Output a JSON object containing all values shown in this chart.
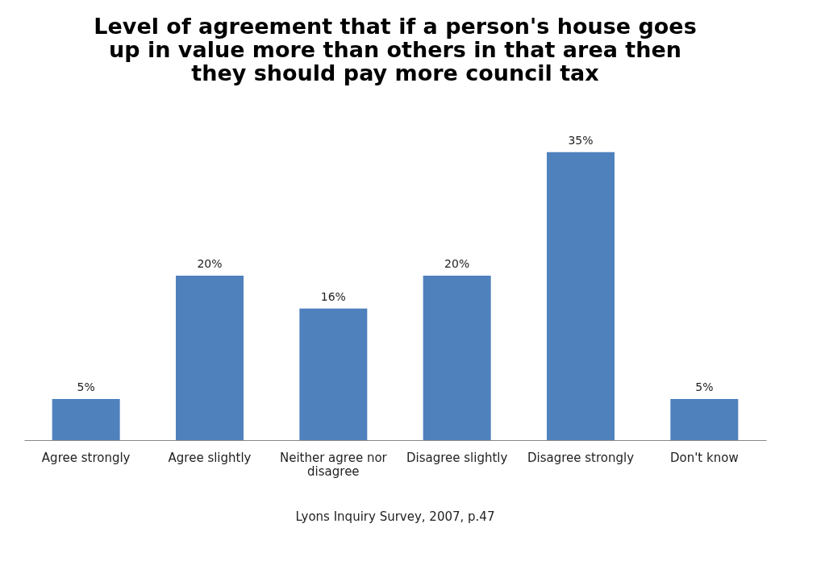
{
  "chart_data": {
    "type": "bar",
    "title": "Level of agreement that if a person's house goes up in value more than others in that area then they should pay more council tax",
    "categories": [
      "Agree strongly",
      "Agree slightly",
      "Neither agree nor disagree",
      "Disagree slightly",
      "Disagree strongly",
      "Don't know"
    ],
    "values": [
      5,
      20,
      16,
      20,
      35,
      5
    ],
    "value_labels": [
      "5%",
      "20%",
      "16%",
      "20%",
      "35%",
      "5%"
    ],
    "color": "#4f81bd",
    "grid": false,
    "annotations": [
      "Lyons Inquiry Survey, 2007, p.47"
    ]
  }
}
